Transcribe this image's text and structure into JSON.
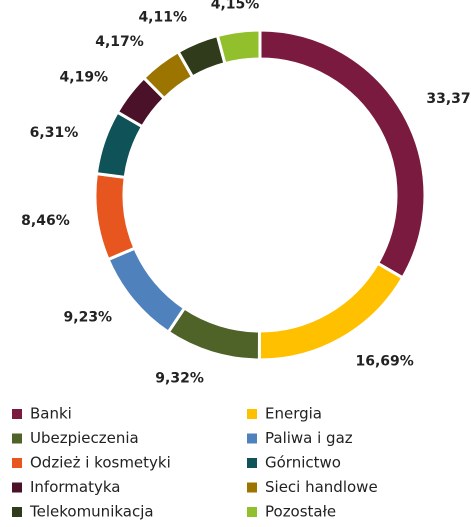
{
  "chart_data": {
    "type": "donut",
    "categories": [
      "Banki",
      "Energia",
      "Ubezpieczenia",
      "Paliwa i gaz",
      "Odzież i kosmetyki",
      "Górnictwo",
      "Informatyka",
      "Sieci handlowe",
      "Telekomunikacja",
      "Pozostałe"
    ],
    "values": [
      33.37,
      16.69,
      9.32,
      9.23,
      8.46,
      6.31,
      4.19,
      4.17,
      4.11,
      4.15
    ],
    "value_labels": [
      "33,37%",
      "16,69%",
      "9,32%",
      "9,23%",
      "8,46%",
      "6,31%",
      "4,19%",
      "4,17%",
      "4,11%",
      "4,15%"
    ],
    "colors": [
      "#7a1a3e",
      "#ffc000",
      "#4f6228",
      "#4f81bd",
      "#e6561e",
      "#0f5257",
      "#4a1128",
      "#9c7400",
      "#2f3b1b",
      "#92c02c"
    ],
    "legend": "bottom"
  }
}
